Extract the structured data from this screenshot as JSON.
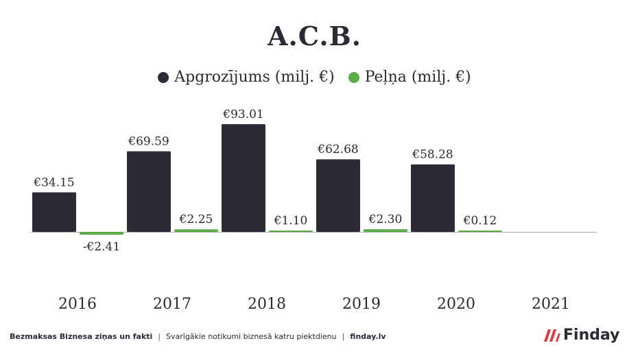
{
  "title": "A.C.B.",
  "legend": [
    {
      "label": "Apgrozījums (milj. €)",
      "color": "#2b2a35"
    },
    {
      "label": "Peļņa (milj. €)",
      "color": "#5aad45"
    }
  ],
  "colors": {
    "revenue": "#2b2a35",
    "profit": "#5aad45",
    "axis": "#aaaaaa"
  },
  "chart_data": {
    "type": "bar",
    "title": "A.C.B.",
    "categories": [
      "2016",
      "2017",
      "2018",
      "2019",
      "2020",
      "2021"
    ],
    "series": [
      {
        "name": "Apgrozījums (milj. €)",
        "values": [
          34.15,
          69.59,
          93.01,
          62.68,
          58.28,
          null
        ],
        "labels": [
          "€34.15",
          "€69.59",
          "€93.01",
          "€62.68",
          "€58.28",
          ""
        ]
      },
      {
        "name": "Peļņa (milj. €)",
        "values": [
          -2.41,
          2.25,
          1.1,
          2.3,
          0.12,
          null
        ],
        "labels": [
          "-€2.41",
          "€2.25",
          "€1.10",
          "€2.30",
          "€0.12",
          ""
        ]
      }
    ]
  },
  "footer": {
    "part1": "Bezmaksas Biznesa ziņas un fakti",
    "separator": "|",
    "part2": "Svarīgākie notikumi biznesā katru piektdienu",
    "part3": "finday.lv"
  },
  "logo": {
    "text": "Finday",
    "icon": "finday-logo-icon"
  }
}
